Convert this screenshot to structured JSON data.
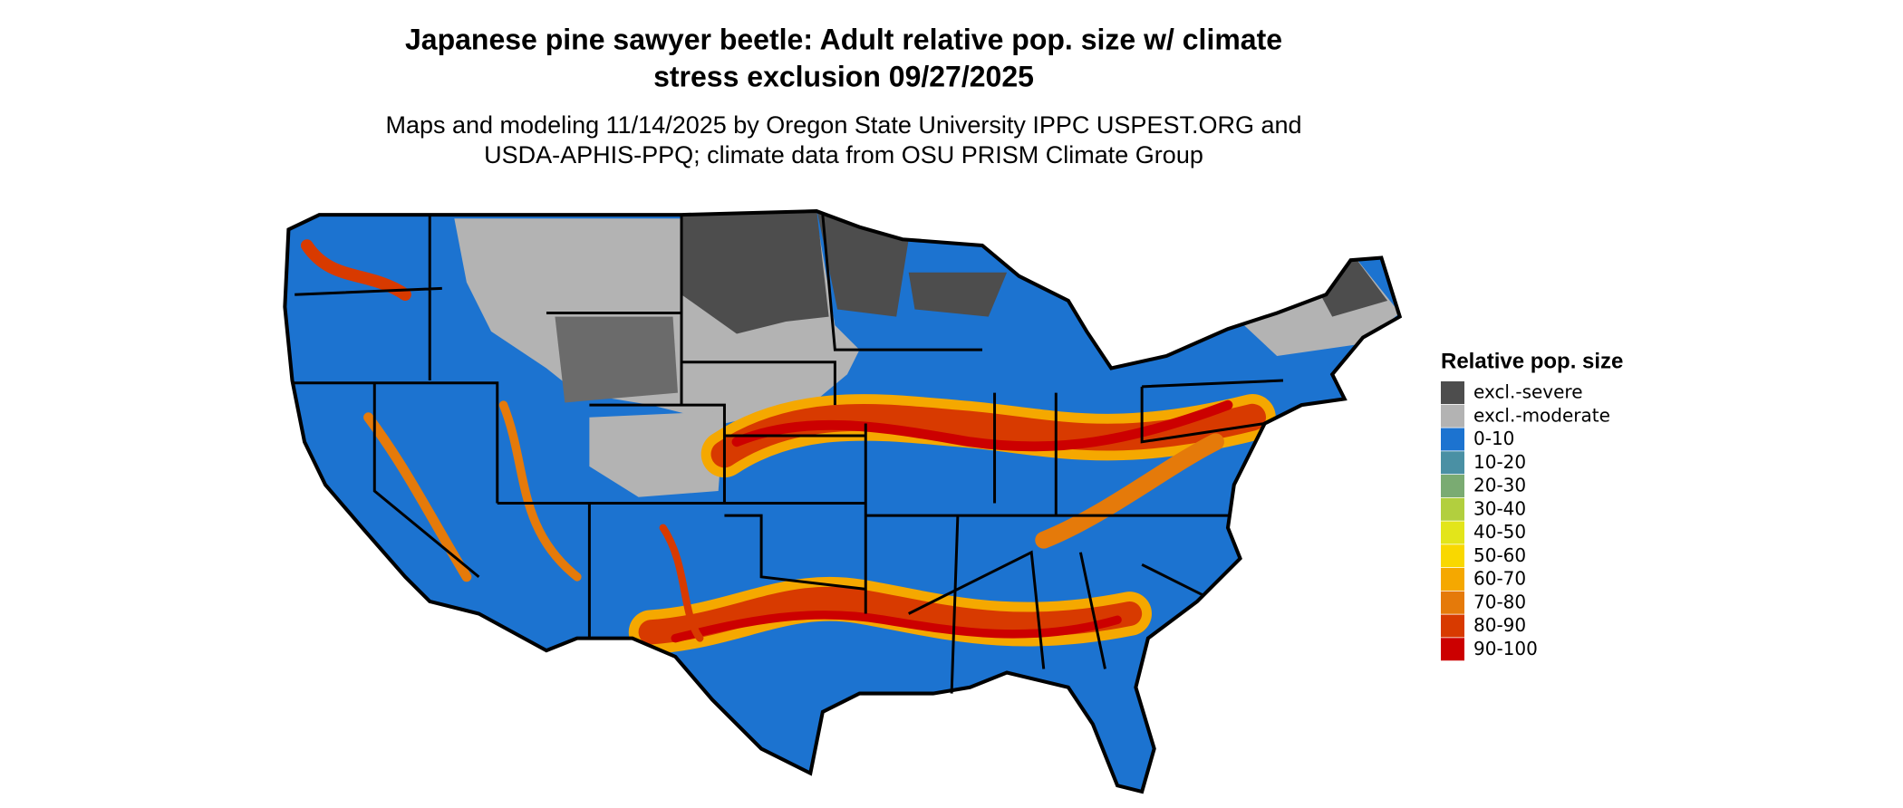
{
  "header": {
    "title_lines": [
      "Japanese pine sawyer beetle: Adult relative pop. size w/ climate",
      "stress exclusion 09/27/2025"
    ],
    "subtitle_lines": [
      "Maps and modeling 11/14/2025 by Oregon State University IPPC USPEST.ORG and",
      "USDA-APHIS-PPQ; climate data from OSU PRISM Climate Group"
    ]
  },
  "legend": {
    "title": "Relative pop. size",
    "items": [
      {
        "label": "excl.-severe",
        "color": "#4d4d4d"
      },
      {
        "label": "excl.-moderate",
        "color": "#b3b3b3"
      },
      {
        "label": "0-10",
        "color": "#1c73d0"
      },
      {
        "label": "10-20",
        "color": "#4a90a4"
      },
      {
        "label": "20-30",
        "color": "#7aab72"
      },
      {
        "label": "30-40",
        "color": "#b2cf3e"
      },
      {
        "label": "40-50",
        "color": "#e3e51a"
      },
      {
        "label": "50-60",
        "color": "#f9d800"
      },
      {
        "label": "60-70",
        "color": "#f5a800"
      },
      {
        "label": "70-80",
        "color": "#e57a0a"
      },
      {
        "label": "80-90",
        "color": "#d83a00"
      },
      {
        "label": "90-100",
        "color": "#cc0000"
      }
    ]
  }
}
